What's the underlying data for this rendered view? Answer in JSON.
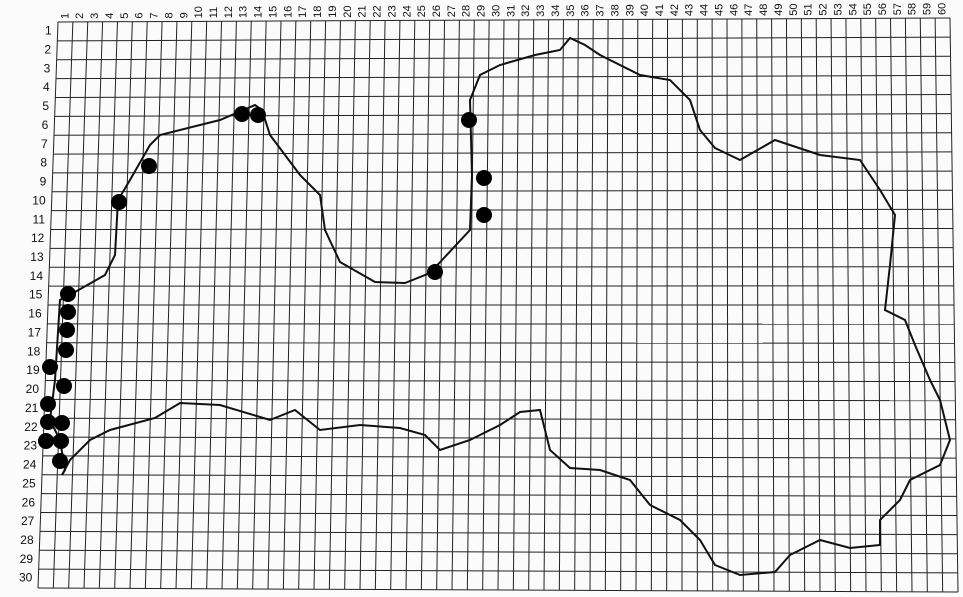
{
  "map": {
    "columns": [
      1,
      2,
      3,
      4,
      5,
      6,
      7,
      8,
      9,
      10,
      11,
      12,
      13,
      14,
      15,
      16,
      17,
      18,
      19,
      20,
      21,
      22,
      23,
      24,
      25,
      26,
      27,
      28,
      29,
      30,
      31,
      32,
      33,
      34,
      35,
      36,
      37,
      38,
      39,
      40,
      41,
      42,
      43,
      44,
      45,
      46,
      47,
      48,
      49,
      50,
      51,
      52,
      53,
      54,
      55,
      56,
      57,
      58,
      59,
      60
    ],
    "rows": [
      1,
      2,
      3,
      4,
      5,
      6,
      7,
      8,
      9,
      10,
      11,
      12,
      13,
      14,
      15,
      16,
      17,
      18,
      19,
      20,
      21,
      22,
      23,
      24,
      25,
      26,
      27,
      28,
      29,
      30
    ]
  }
}
